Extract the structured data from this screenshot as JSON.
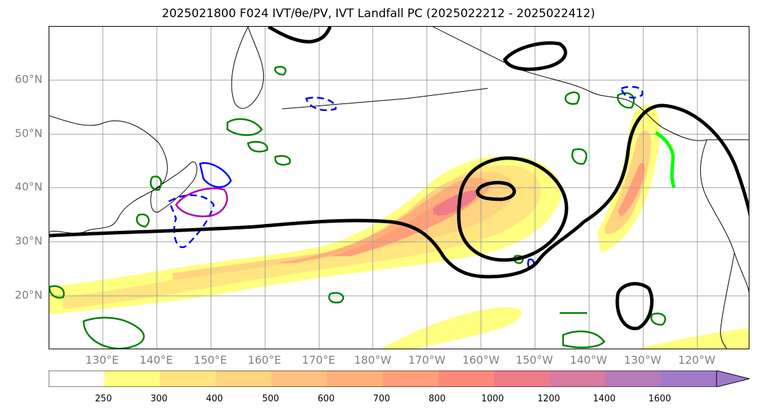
{
  "title": "2025021800 F024 IVT/θe/PV, IVT Landfall PC (2025022212 - 2025022412)",
  "lat_labels": [
    "60°N",
    "50°N",
    "40°N",
    "30°N",
    "20°N"
  ],
  "lon_labels": [
    "130°E",
    "140°E",
    "150°E",
    "160°E",
    "170°E",
    "180°W",
    "170°W",
    "160°W",
    "150°W",
    "140°W",
    "130°W",
    "120°W"
  ],
  "colorbar": {
    "ticks": [
      "250",
      "300",
      "400",
      "500",
      "600",
      "700",
      "800",
      "1000",
      "1200",
      "1400",
      "1600"
    ],
    "colors": [
      "#ffffff",
      "#ffff80",
      "#ffe680",
      "#ffd480",
      "#ffc080",
      "#ffb07a",
      "#ff9f7a",
      "#ff8a7a",
      "#ef7a8a",
      "#d97aa0",
      "#b87ab8",
      "#a07ac8"
    ]
  },
  "colors": {
    "ivt_shading": "#ffc080",
    "theta_e_contour": "#000000",
    "pv_contour": "#008000",
    "landfall_line": "#00ff00",
    "dashed_contour": "#0000ff",
    "magenta_contour": "#b000b0"
  }
}
